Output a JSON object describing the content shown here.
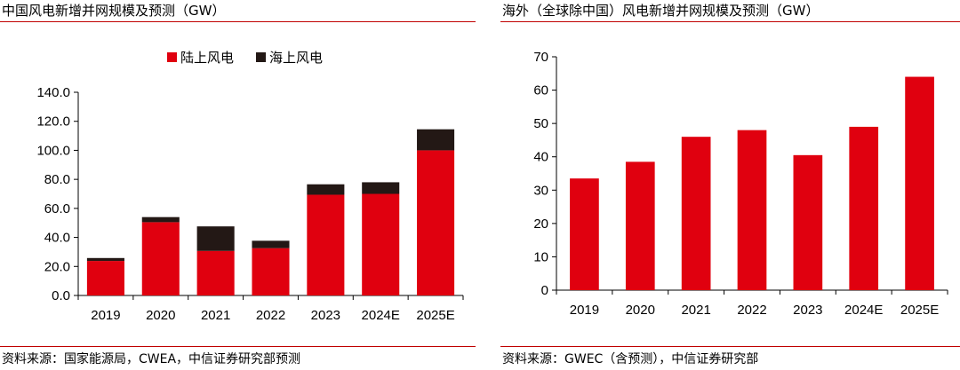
{
  "left_panel": {
    "title": "中国风电新增并网规模及预测（GW）",
    "source": "资料来源：国家能源局，CWEA，中信证券研究部预测"
  },
  "right_panel": {
    "title": "海外（全球除中国）风电新增并网规模及预测（GW）",
    "source": "资料来源：GWEC（含预测），中信证券研究部"
  },
  "colors": {
    "onshore": "#e0000f",
    "offshore": "#231815",
    "rule": "#c00000",
    "axis": "#000000"
  },
  "chart_data": [
    {
      "type": "bar",
      "stacked": true,
      "title": "中国风电新增并网规模及预测（GW）",
      "categories": [
        "2019",
        "2020",
        "2021",
        "2022",
        "2023",
        "2024E",
        "2025E"
      ],
      "series": [
        {
          "name": "陆上风电",
          "color": "#e0000f",
          "values": [
            23.8,
            50.5,
            30.7,
            32.6,
            69.4,
            70.0,
            100.0
          ]
        },
        {
          "name": "海上风电",
          "color": "#231815",
          "values": [
            2.0,
            3.5,
            16.9,
            5.1,
            7.2,
            8.0,
            14.5
          ]
        }
      ],
      "ylim": [
        0,
        140
      ],
      "yticks": [
        "0.0",
        "20.0",
        "40.0",
        "60.0",
        "80.0",
        "100.0",
        "120.0",
        "140.0"
      ],
      "ytick_values": [
        0,
        20,
        40,
        60,
        80,
        100,
        120,
        140
      ],
      "legend_position": "top"
    },
    {
      "type": "bar",
      "title": "海外（全球除中国）风电新增并网规模及预测（GW）",
      "categories": [
        "2019",
        "2020",
        "2021",
        "2022",
        "2023",
        "2024E",
        "2025E"
      ],
      "series": [
        {
          "color": "#e0000f",
          "values": [
            33.5,
            38.5,
            46.0,
            48.0,
            40.5,
            49.0,
            64.0
          ]
        }
      ],
      "ylim": [
        0,
        70
      ],
      "yticks": [
        "0",
        "10",
        "20",
        "30",
        "40",
        "50",
        "60",
        "70"
      ],
      "ytick_values": [
        0,
        10,
        20,
        30,
        40,
        50,
        60,
        70
      ]
    }
  ]
}
